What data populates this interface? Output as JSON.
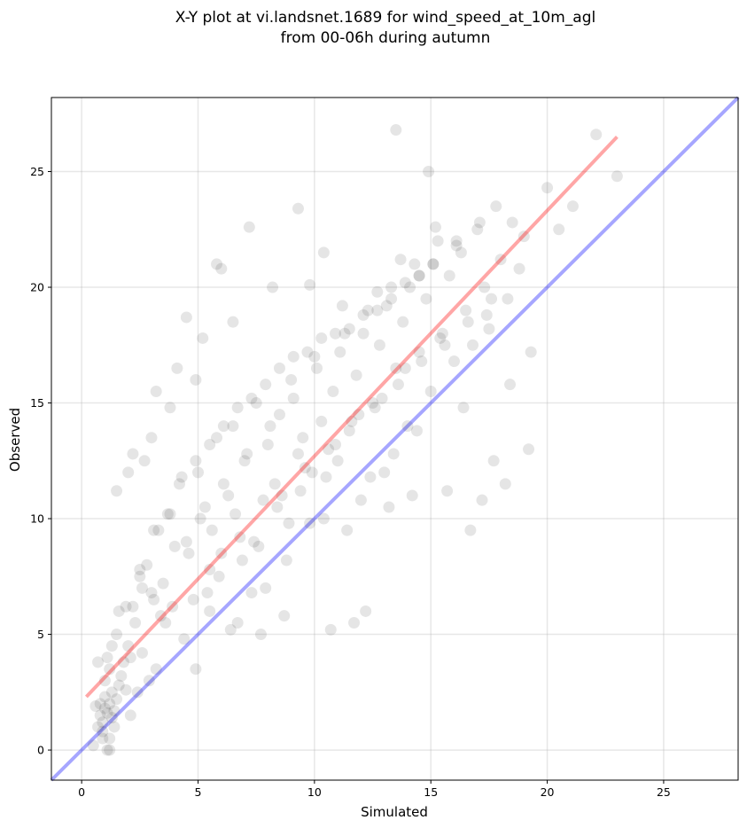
{
  "chart_data": {
    "type": "scatter",
    "title_line1": "X-Y plot at vi.landsnet.1689 for wind_speed_at_10m_agl",
    "title_line2": "from 00-06h during autumn",
    "xlabel": "Simulated",
    "ylabel": "Observed",
    "xlim": [
      -1.3,
      28.2
    ],
    "ylim": [
      -1.3,
      28.2
    ],
    "xticks": [
      "0",
      "5",
      "10",
      "15",
      "20",
      "25"
    ],
    "yticks": [
      "0",
      "5",
      "10",
      "15",
      "20",
      "25"
    ],
    "grid": true,
    "point_color": "#000000",
    "point_alpha": 0.1,
    "series": [
      {
        "x": [
          0.8,
          1.0,
          1.2,
          0.9,
          0.7,
          1.1,
          1.3,
          1.5,
          0.9,
          1.0,
          1.2,
          1.4,
          1.6,
          0.8,
          1.1,
          1.3,
          0.6,
          1.0,
          1.2,
          1.7,
          2.0,
          1.5,
          1.8,
          2.2,
          2.5,
          1.9,
          2.3,
          2.8,
          3.0,
          2.6,
          3.3,
          3.5,
          3.8,
          4.0,
          3.2,
          4.2,
          4.5,
          4.8,
          5.0,
          5.3,
          5.5,
          5.8,
          6.0,
          6.3,
          6.5,
          6.8,
          7.0,
          7.3,
          7.5,
          7.8,
          8.0,
          8.3,
          8.5,
          8.8,
          9.0,
          9.3,
          9.5,
          9.8,
          10.0,
          10.3,
          10.5,
          10.8,
          11.0,
          11.3,
          11.5,
          11.8,
          12.0,
          12.3,
          12.5,
          12.8,
          13.0,
          13.3,
          13.5,
          13.8,
          14.0,
          14.3,
          14.5,
          14.8,
          15.0,
          15.3,
          15.5,
          15.8,
          16.0,
          16.3,
          16.5,
          16.8,
          17.0,
          17.3,
          17.5,
          17.8,
          18.0,
          18.3,
          18.5,
          18.8,
          19.0,
          19.3,
          20.0,
          20.5,
          21.1,
          22.1,
          23.0,
          13.5,
          14.9,
          9.3,
          7.2,
          5.8,
          6.0,
          6.5,
          3.2,
          2.2,
          2.0,
          1.5,
          1.2,
          4.1,
          4.5,
          4.9,
          5.2,
          3.8,
          3.0,
          2.7,
          8.2,
          9.8,
          10.4,
          11.2,
          12.7,
          13.7,
          14.5,
          15.2,
          16.1,
          5.5,
          6.7,
          7.7,
          8.7,
          10.7,
          11.7,
          12.2,
          13.2,
          14.2,
          15.7,
          16.7,
          17.2,
          17.7,
          18.2,
          19.2,
          0.5,
          0.9,
          1.1,
          1.4,
          2.1,
          2.4,
          2.9,
          3.4,
          3.9,
          4.4,
          4.9,
          5.4,
          5.9,
          6.4,
          6.9,
          7.4,
          7.9,
          8.4,
          8.9,
          9.4,
          9.9,
          10.4,
          10.9,
          11.4,
          11.9,
          12.4,
          12.9,
          13.4,
          13.9,
          14.4,
          15.4,
          16.4,
          17.4,
          18.4,
          3.6,
          3.1,
          2.6,
          2.1,
          1.6,
          4.6,
          5.1,
          5.6,
          6.1,
          6.6,
          7.1,
          7.6,
          8.1,
          8.6,
          9.1,
          9.6,
          10.1,
          10.6,
          11.1,
          11.6,
          12.1,
          12.6,
          13.1,
          13.6,
          14.1,
          14.6,
          15.1,
          15.6,
          16.1,
          16.6,
          17.1,
          17.6,
          0.7,
          1.3,
          1.9,
          2.5,
          3.1,
          3.7,
          4.3,
          4.9,
          5.5,
          6.1,
          6.7,
          7.3,
          7.9,
          8.5,
          9.1,
          9.7,
          10.3,
          10.9,
          11.5,
          12.1,
          12.7,
          13.3,
          13.9,
          14.5,
          15.1
        ],
        "y": [
          1.5,
          1.8,
          2.0,
          1.2,
          1.0,
          1.6,
          2.5,
          2.2,
          0.8,
          3.0,
          3.5,
          1.7,
          2.8,
          2.0,
          4.0,
          1.4,
          1.9,
          2.3,
          0.5,
          3.2,
          4.5,
          5.0,
          3.8,
          6.2,
          7.5,
          2.6,
          5.5,
          8.0,
          6.8,
          4.2,
          9.5,
          7.2,
          10.2,
          8.8,
          3.5,
          11.5,
          9.0,
          6.5,
          12.0,
          10.5,
          7.8,
          13.5,
          8.5,
          11.0,
          14.0,
          9.2,
          12.5,
          6.8,
          15.0,
          10.8,
          13.2,
          11.5,
          14.5,
          8.2,
          16.0,
          12.8,
          13.5,
          9.8,
          17.0,
          14.2,
          11.8,
          15.5,
          12.5,
          18.0,
          13.8,
          16.2,
          10.8,
          19.0,
          15.0,
          17.5,
          12.0,
          20.0,
          16.5,
          18.5,
          14.0,
          21.0,
          17.2,
          19.5,
          15.5,
          22.0,
          18.0,
          20.5,
          16.8,
          21.5,
          19.0,
          17.5,
          22.5,
          20.0,
          18.2,
          23.5,
          21.2,
          19.5,
          22.8,
          20.8,
          22.2,
          17.2,
          24.3,
          22.5,
          23.5,
          26.6,
          24.8,
          26.8,
          25.0,
          23.4,
          22.6,
          21.0,
          20.8,
          18.5,
          15.5,
          12.8,
          12.0,
          11.2,
          0.0,
          16.5,
          18.7,
          16.0,
          17.8,
          14.8,
          13.5,
          12.5,
          20.0,
          20.1,
          21.5,
          19.2,
          19.8,
          21.2,
          20.5,
          22.6,
          22.0,
          6.0,
          5.5,
          5.0,
          5.8,
          5.2,
          5.5,
          6.0,
          10.5,
          11.0,
          11.2,
          9.5,
          10.8,
          12.5,
          11.5,
          13.0,
          0.2,
          0.5,
          0.0,
          1.0,
          1.5,
          2.5,
          3.0,
          5.8,
          6.2,
          4.8,
          3.5,
          6.8,
          7.5,
          5.2,
          8.2,
          9.0,
          7.0,
          10.5,
          9.8,
          11.2,
          12.0,
          10.0,
          13.2,
          9.5,
          14.5,
          11.8,
          15.2,
          12.8,
          16.5,
          13.8,
          17.8,
          14.8,
          18.8,
          15.8,
          5.5,
          6.5,
          7.0,
          4.0,
          6.0,
          8.5,
          10.0,
          9.5,
          11.5,
          10.2,
          12.8,
          8.8,
          14.0,
          11.0,
          15.2,
          12.2,
          16.5,
          13.0,
          17.2,
          14.2,
          18.0,
          14.8,
          19.2,
          15.8,
          20.0,
          16.8,
          21.0,
          17.5,
          21.8,
          18.5,
          22.8,
          19.5,
          3.8,
          4.5,
          6.2,
          7.8,
          9.5,
          10.2,
          11.8,
          12.5,
          13.2,
          14.0,
          14.8,
          15.2,
          15.8,
          16.5,
          17.0,
          17.2,
          17.8,
          18.0,
          18.2,
          18.8,
          19.0,
          19.5,
          20.2,
          20.5,
          21.0
        ]
      }
    ],
    "regression_line": {
      "color": "#ff0000",
      "alpha": 0.35,
      "x": [
        0.2,
        23.0
      ],
      "y": [
        2.3,
        26.5
      ]
    },
    "identity_line": {
      "color": "#0000ff",
      "alpha": 0.35,
      "x": [
        -1.3,
        28.2
      ],
      "y": [
        -1.3,
        28.2
      ]
    }
  }
}
